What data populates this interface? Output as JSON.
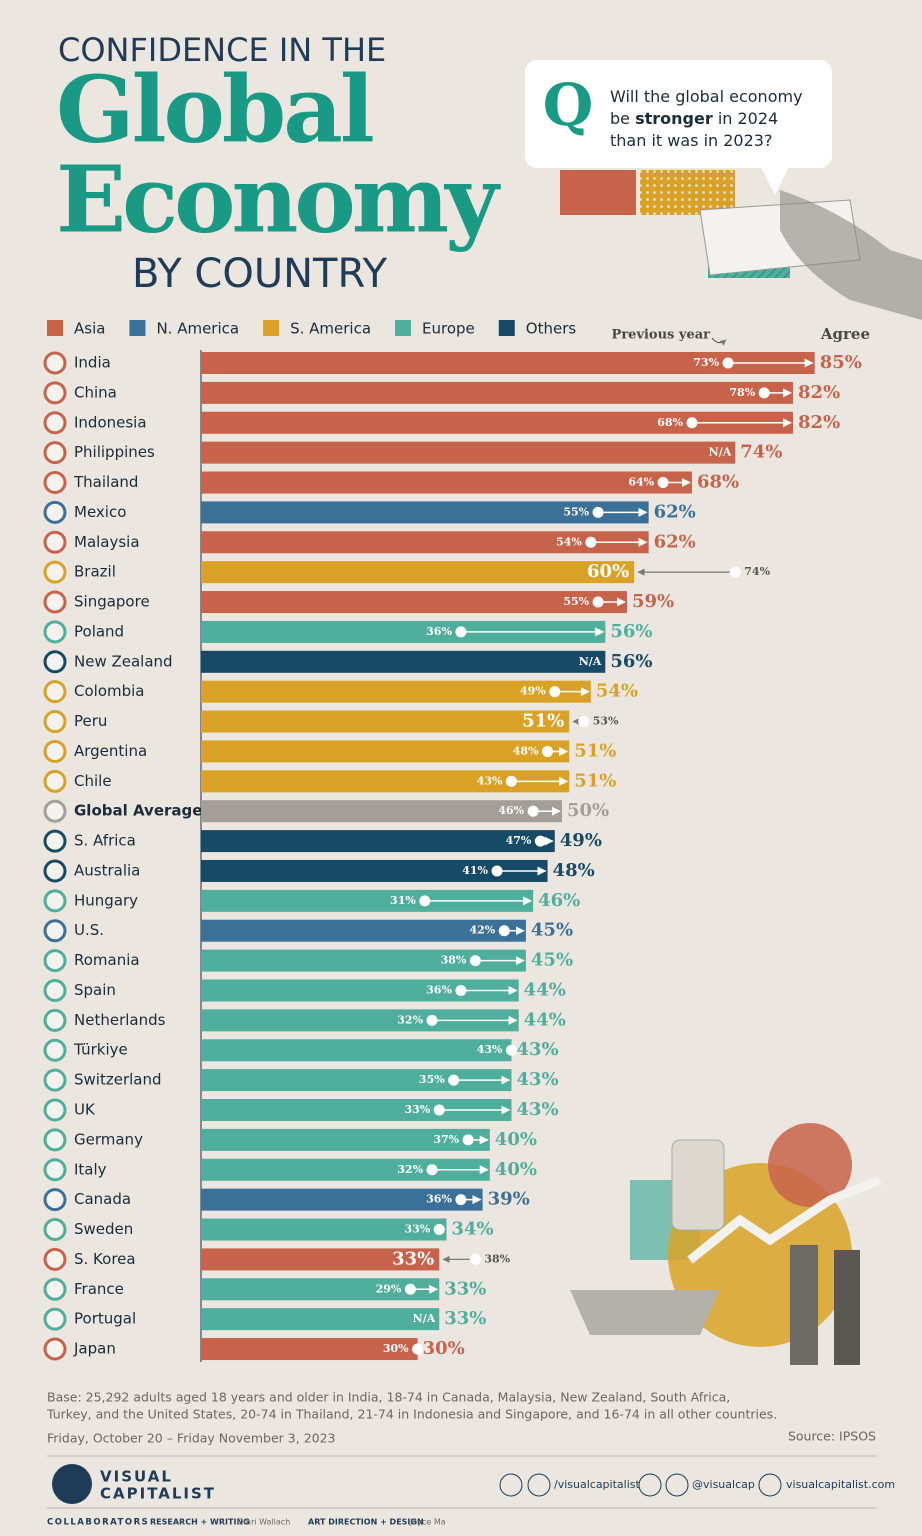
{
  "chart_data": {
    "type": "bar",
    "orientation": "horizontal",
    "title_top": "CONFIDENCE IN THE",
    "title_main": [
      "Global",
      "Economy"
    ],
    "title_bottom": "BY COUNTRY",
    "question": {
      "letter": "Q",
      "lines": [
        [
          "Will the global economy"
        ],
        [
          "be ",
          "stronger",
          " in 2024"
        ],
        [
          "than it was in 2023?"
        ]
      ]
    },
    "legend": [
      {
        "name": "Asia",
        "color": "#c8634b"
      },
      {
        "name": "N. America",
        "color": "#3b7199"
      },
      {
        "name": "S. America",
        "color": "#d9a227"
      },
      {
        "name": "Europe",
        "color": "#4fae9c"
      },
      {
        "name": "Others",
        "color": "#174a66"
      }
    ],
    "average_color": "#a39e98",
    "categories": [
      "India",
      "China",
      "Indonesia",
      "Philippines",
      "Thailand",
      "Mexico",
      "Malaysia",
      "Brazil",
      "Singapore",
      "Poland",
      "New Zealand",
      "Colombia",
      "Peru",
      "Argentina",
      "Chile",
      "Global Average",
      "S. Africa",
      "Australia",
      "Hungary",
      "U.S.",
      "Romania",
      "Spain",
      "Netherlands",
      "Türkiye",
      "Switzerland",
      "UK",
      "Germany",
      "Italy",
      "Canada",
      "Sweden",
      "S. Korea",
      "France",
      "Portugal",
      "Japan"
    ],
    "regions": [
      0,
      0,
      0,
      0,
      0,
      1,
      0,
      2,
      0,
      3,
      4,
      2,
      2,
      2,
      2,
      null,
      4,
      4,
      3,
      1,
      3,
      3,
      3,
      3,
      3,
      3,
      3,
      3,
      1,
      3,
      0,
      3,
      3,
      0
    ],
    "series": [
      {
        "name": "Agree",
        "values": [
          85,
          82,
          82,
          74,
          68,
          62,
          62,
          60,
          59,
          56,
          56,
          54,
          51,
          51,
          51,
          50,
          49,
          48,
          46,
          45,
          45,
          44,
          44,
          43,
          43,
          43,
          40,
          40,
          39,
          34,
          33,
          33,
          33,
          30
        ],
        "value_labels": [
          "85%",
          "82%",
          "82%",
          "74%",
          "68%",
          "62%",
          "62%",
          "60%",
          "59%",
          "56%",
          "56%",
          "54%",
          "51%",
          "51%",
          "51%",
          "50%",
          "49%",
          "48%",
          "46%",
          "45%",
          "45%",
          "44%",
          "44%",
          "43%",
          "43%",
          "43%",
          "40%",
          "40%",
          "39%",
          "34%",
          "33%",
          "33%",
          "33%",
          "30%"
        ]
      },
      {
        "name": "Previous year",
        "values": [
          73,
          78,
          68,
          null,
          64,
          55,
          54,
          74,
          55,
          36,
          null,
          49,
          53,
          48,
          43,
          46,
          47,
          41,
          31,
          42,
          38,
          36,
          32,
          43,
          35,
          33,
          37,
          32,
          36,
          33,
          38,
          29,
          null,
          30
        ],
        "value_labels": [
          "73%",
          "78%",
          "68%",
          "N/A",
          "64%",
          "55%",
          "54%",
          "74%",
          "55%",
          "36%",
          "N/A",
          "49%",
          "53%",
          "48%",
          "43%",
          "46%",
          "47%",
          "41%",
          "31%",
          "42%",
          "38%",
          "36%",
          "32%",
          "43%",
          "35%",
          "33%",
          "37%",
          "32%",
          "36%",
          "33%",
          "38%",
          "29%",
          "N/A",
          "30%"
        ]
      }
    ],
    "note": [
      "Base: 25,292 adults aged 18 years and older in India, 18-74 in Canada, Malaysia, New Zealand, South Africa,",
      "Turkey, and the United States, 20-74 in Thailand, 21-74 in Indonesia and Singapore, and 16-74 in all other countries."
    ],
    "date": "Friday, October 20 – Friday November 3, 2023",
    "source": "Source: IPSOS"
  },
  "footer": {
    "brand": [
      "VISUAL",
      "CAPITALIST"
    ],
    "social": [
      "/visualcapitalist",
      "@visualcap",
      "visualcapitalist.com"
    ],
    "collaborators": "COLLABORATORS",
    "credits": [
      [
        "RESEARCH + WRITING",
        "Omri Wallach"
      ],
      [
        "ART DIRECTION + DESIGN",
        "Joyce Ma"
      ]
    ]
  }
}
